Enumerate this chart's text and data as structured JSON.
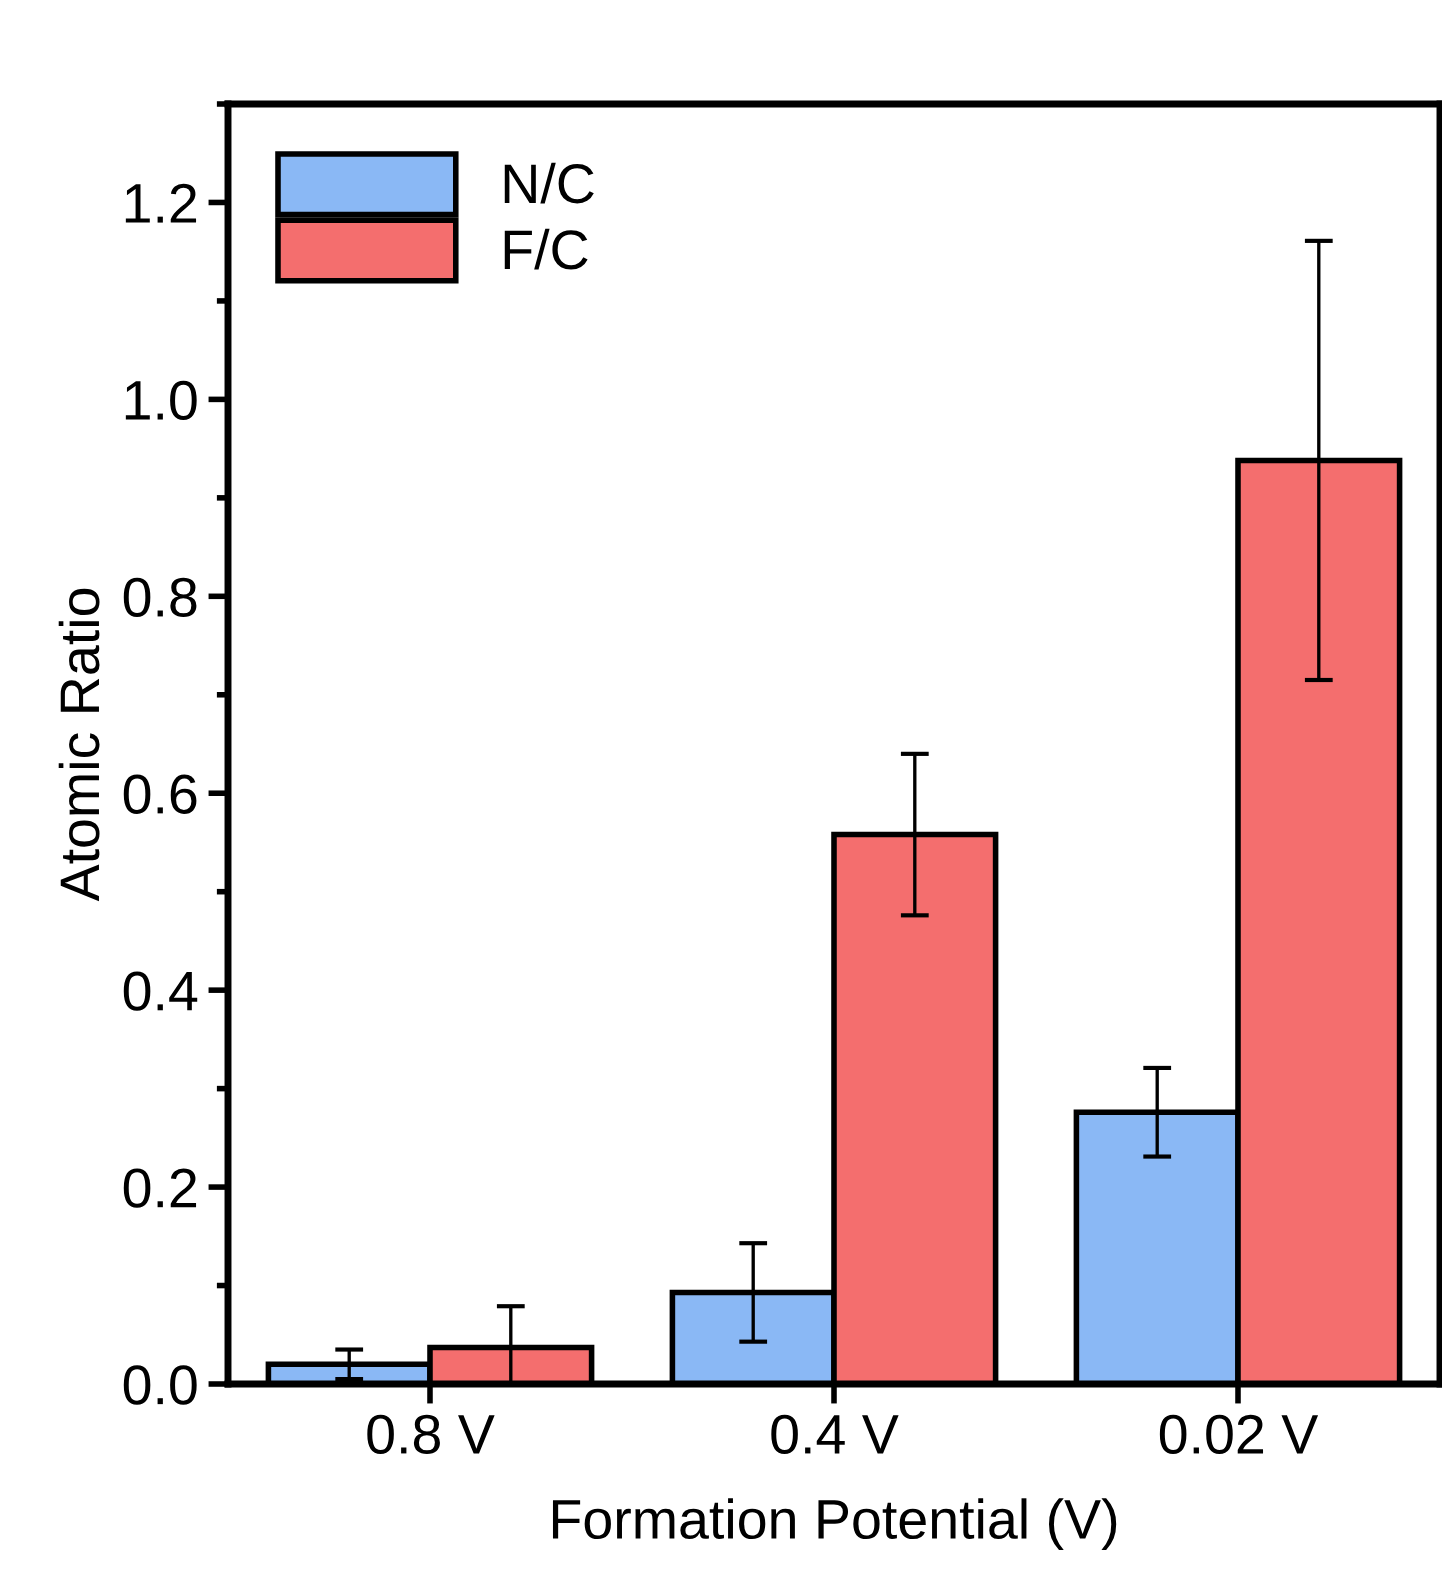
{
  "chart_data": {
    "type": "bar",
    "xlabel": "Formation Potential (V)",
    "ylabel": "Atomic Ratio",
    "categories": [
      "0.8 V",
      "0.4 V",
      "0.02 V"
    ],
    "series": [
      {
        "name": "N/C",
        "color": "#8ab8f5",
        "values": [
          0.02,
          0.093,
          0.276
        ],
        "errors": [
          0.015,
          0.05,
          0.045
        ]
      },
      {
        "name": "F/C",
        "color": "#f46e6e",
        "values": [
          0.037,
          0.558,
          0.938
        ],
        "errors": [
          0.042,
          0.082,
          0.223
        ]
      }
    ],
    "ylim": [
      0,
      1.3
    ],
    "yticks": [
      {
        "value": 0,
        "label": "0.0"
      },
      0.2,
      0.4,
      0.6,
      0.8,
      {
        "value": 1,
        "label": "1.0"
      },
      1.2
    ],
    "grid": false,
    "legend": "top left"
  }
}
